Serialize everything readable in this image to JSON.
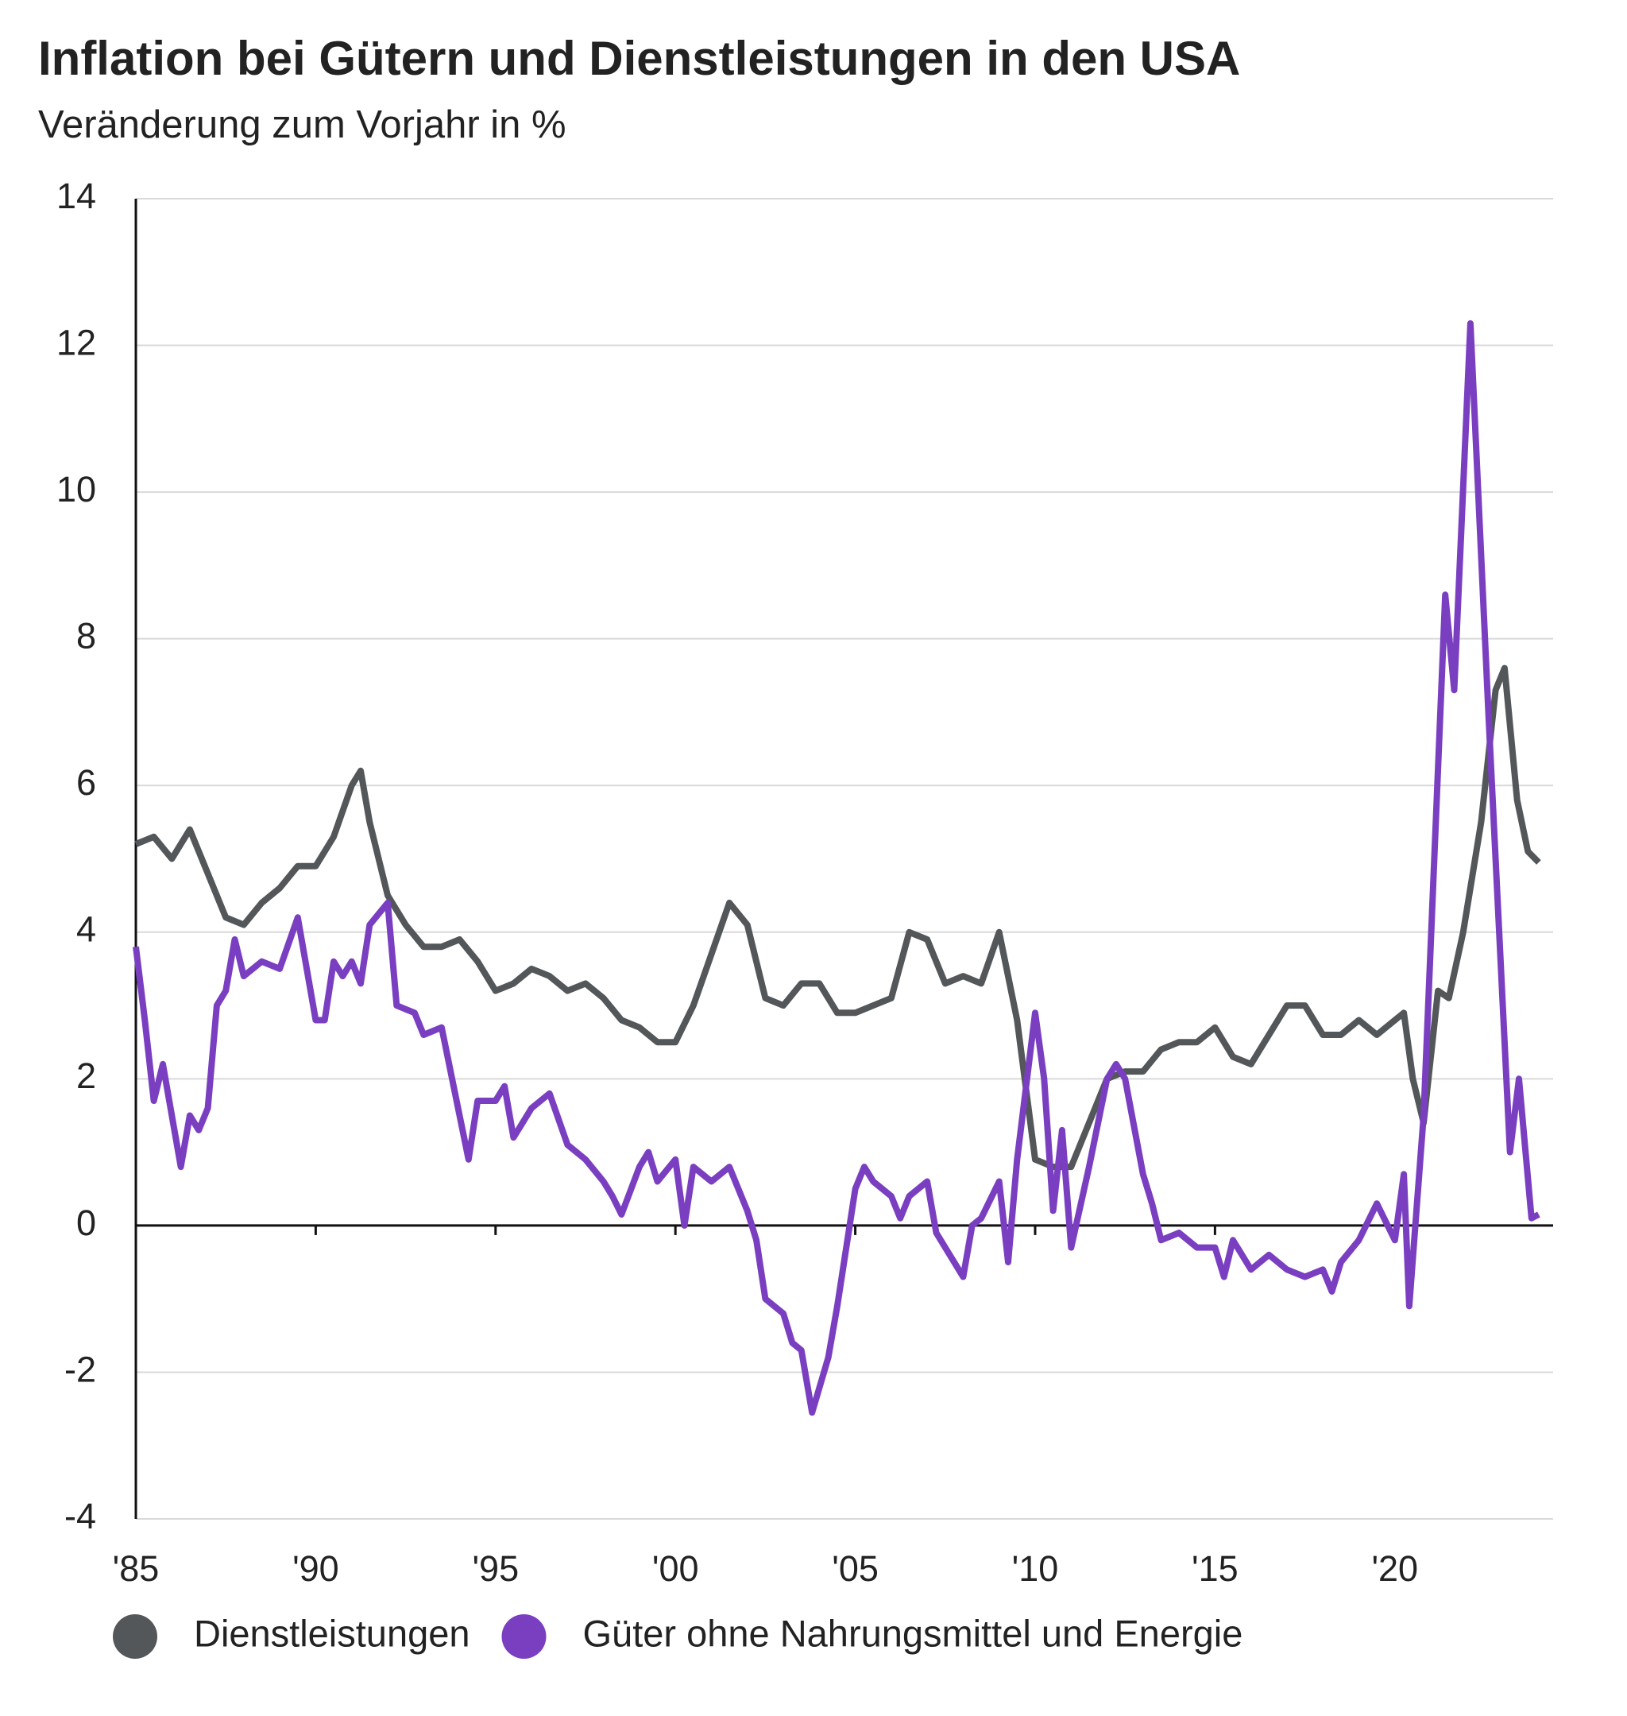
{
  "chart_data": {
    "type": "line",
    "title": "Inflation bei Gütern und Dienstleistungen in den USA",
    "subtitle": "Veränderung zum Vorjahr in %",
    "xlim": [
      1985,
      2024.4
    ],
    "ylim": [
      -4,
      14
    ],
    "yticks": [
      -4,
      -2,
      0,
      2,
      4,
      6,
      8,
      10,
      12,
      14
    ],
    "xticks": [
      {
        "value": 1985,
        "label": "'85"
      },
      {
        "value": 1990,
        "label": "'90"
      },
      {
        "value": 1995,
        "label": "'95"
      },
      {
        "value": 2000,
        "label": "'00"
      },
      {
        "value": 2005,
        "label": "'05"
      },
      {
        "value": 2010,
        "label": "'10"
      },
      {
        "value": 2015,
        "label": "'15"
      },
      {
        "value": 2020,
        "label": "'20"
      }
    ],
    "grid": true,
    "series": [
      {
        "name": "Dienstleistungen",
        "color": "#53575a",
        "x": [
          1985,
          1985.5,
          1986,
          1986.5,
          1987,
          1987.5,
          1988,
          1988.5,
          1989,
          1989.5,
          1990,
          1990.5,
          1991,
          1991.25,
          1991.5,
          1992,
          1992.5,
          1993,
          1993.5,
          1994,
          1994.5,
          1995,
          1995.5,
          1996,
          1996.5,
          1997,
          1997.5,
          1998,
          1998.5,
          1999,
          1999.5,
          2000,
          2000.5,
          2001,
          2001.5,
          2002,
          2002.5,
          2003,
          2003.5,
          2004,
          2004.5,
          2005,
          2005.5,
          2006,
          2006.5,
          2007,
          2007.5,
          2008,
          2008.5,
          2009,
          2009.5,
          2010,
          2010.5,
          2011,
          2011.5,
          2012,
          2012.5,
          2013,
          2013.5,
          2014,
          2014.5,
          2015,
          2015.5,
          2016,
          2016.5,
          2017,
          2017.5,
          2018,
          2018.5,
          2019,
          2019.5,
          2020,
          2020.25,
          2020.5,
          2020.8,
          2021.2,
          2021.5,
          2021.9,
          2022.4,
          2022.8,
          2023.05,
          2023.4,
          2023.7,
          2024
        ],
        "values": [
          5.2,
          5.3,
          5.0,
          5.4,
          4.8,
          4.2,
          4.1,
          4.4,
          4.6,
          4.9,
          4.9,
          5.3,
          6.0,
          6.2,
          5.5,
          4.5,
          4.1,
          3.8,
          3.8,
          3.9,
          3.6,
          3.2,
          3.3,
          3.5,
          3.4,
          3.2,
          3.3,
          3.1,
          2.8,
          2.7,
          2.5,
          2.5,
          3.0,
          3.7,
          4.4,
          4.1,
          3.1,
          3.0,
          3.3,
          3.3,
          2.9,
          2.9,
          3.0,
          3.1,
          4.0,
          3.9,
          3.3,
          3.4,
          3.3,
          4.0,
          2.8,
          0.9,
          0.8,
          0.8,
          1.4,
          2.0,
          2.1,
          2.1,
          2.4,
          2.5,
          2.5,
          2.7,
          2.3,
          2.2,
          2.6,
          3.0,
          3.0,
          2.6,
          2.6,
          2.8,
          2.6,
          2.8,
          2.9,
          2.0,
          1.4,
          3.2,
          3.1,
          4.0,
          5.5,
          7.3,
          7.6,
          5.8,
          5.1,
          4.95
        ]
      },
      {
        "name": "Güter ohne Nahrungsmittel und Energie",
        "color": "#7a3fc1",
        "x": [
          1985,
          1985.25,
          1985.5,
          1985.75,
          1986,
          1986.25,
          1986.5,
          1986.75,
          1987,
          1987.25,
          1987.5,
          1987.75,
          1988,
          1988.5,
          1989,
          1989.5,
          1989.75,
          1990,
          1990.25,
          1990.5,
          1990.75,
          1991,
          1991.25,
          1991.5,
          1992,
          1992.25,
          1992.75,
          1993,
          1993.5,
          1994,
          1994.25,
          1994.5,
          1995,
          1995.25,
          1995.5,
          1996,
          1996.5,
          1997,
          1997.5,
          1998,
          1998.25,
          1998.5,
          1999,
          1999.25,
          1999.5,
          2000,
          2000.25,
          2000.5,
          2001,
          2001.5,
          2002,
          2002.25,
          2002.5,
          2003,
          2003.25,
          2003.5,
          2003.8,
          2004.25,
          2004.5,
          2005,
          2005.25,
          2005.5,
          2006,
          2006.25,
          2006.5,
          2007,
          2007.25,
          2007.5,
          2008,
          2008.25,
          2008.5,
          2009,
          2009.25,
          2009.5,
          2010,
          2010.25,
          2010.5,
          2010.75,
          2011,
          2011.5,
          2012,
          2012.25,
          2012.5,
          2013,
          2013.25,
          2013.5,
          2014,
          2014.5,
          2015,
          2015.25,
          2015.5,
          2016,
          2016.5,
          2017,
          2017.5,
          2018,
          2018.25,
          2018.5,
          2019,
          2019.5,
          2020,
          2020.25,
          2020.4,
          2020.8,
          2021.4,
          2021.65,
          2022.1,
          2022.6,
          2023.2,
          2023.45,
          2023.8,
          2024
        ],
        "values": [
          3.8,
          2.8,
          1.7,
          2.2,
          1.5,
          0.8,
          1.5,
          1.3,
          1.6,
          3.0,
          3.2,
          3.9,
          3.4,
          3.6,
          3.5,
          4.2,
          3.5,
          2.8,
          2.8,
          3.6,
          3.4,
          3.6,
          3.3,
          4.1,
          4.4,
          3.0,
          2.9,
          2.6,
          2.7,
          1.5,
          0.9,
          1.7,
          1.7,
          1.9,
          1.2,
          1.6,
          1.8,
          1.1,
          0.9,
          0.6,
          0.4,
          0.15,
          0.8,
          1.0,
          0.6,
          0.9,
          0.0,
          0.8,
          0.6,
          0.8,
          0.2,
          -0.2,
          -1.0,
          -1.2,
          -1.6,
          -1.7,
          -2.55,
          -1.8,
          -1.1,
          0.5,
          0.8,
          0.6,
          0.4,
          0.1,
          0.4,
          0.6,
          -0.1,
          -0.3,
          -0.7,
          0.0,
          0.1,
          0.6,
          -0.5,
          0.9,
          2.9,
          2.0,
          0.2,
          1.3,
          -0.3,
          0.8,
          2.0,
          2.2,
          2.0,
          0.7,
          0.3,
          -0.2,
          -0.1,
          -0.3,
          -0.3,
          -0.7,
          -0.2,
          -0.6,
          -0.4,
          -0.6,
          -0.7,
          -0.6,
          -0.9,
          -0.5,
          -0.2,
          0.3,
          -0.2,
          0.7,
          -1.1,
          1.5,
          8.6,
          7.3,
          12.3,
          7.0,
          1.0,
          2.0,
          0.1,
          0.15
        ]
      }
    ]
  }
}
